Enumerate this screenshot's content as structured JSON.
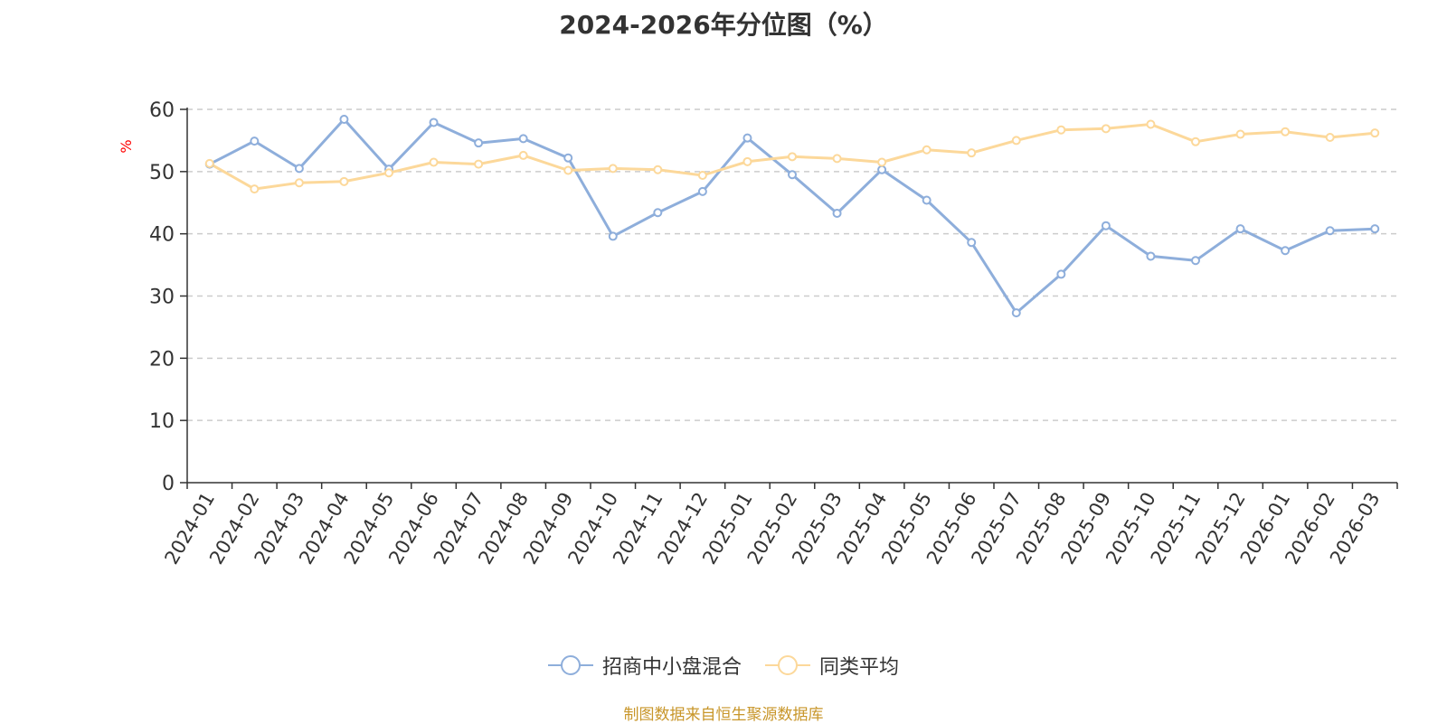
{
  "chart_data": {
    "type": "line",
    "title": "2024-2026年分位图（%）",
    "ylabel": "%",
    "ylim": [
      0,
      60
    ],
    "yticks": [
      0,
      10,
      20,
      30,
      40,
      50,
      60
    ],
    "grid": true,
    "legend_position": "bottom",
    "categories": [
      "2024-01",
      "2024-02",
      "2024-03",
      "2024-04",
      "2024-05",
      "2024-06",
      "2024-07",
      "2024-08",
      "2024-09",
      "2024-10",
      "2024-11",
      "2024-12",
      "2025-01",
      "2025-02",
      "2025-03",
      "2025-04",
      "2025-05",
      "2025-06",
      "2025-07",
      "2025-08",
      "2025-09",
      "2025-10",
      "2025-11",
      "2025-12",
      "2026-01",
      "2026-02",
      "2026-03"
    ],
    "series": [
      {
        "name": "招商中小盘混合",
        "color": "#8eaedb",
        "values": [
          51.2,
          54.9,
          50.5,
          58.4,
          50.4,
          57.9,
          54.6,
          55.3,
          52.2,
          39.6,
          43.4,
          46.8,
          55.4,
          49.5,
          43.3,
          50.3,
          45.4,
          38.6,
          27.3,
          33.5,
          41.3,
          36.4,
          35.7,
          40.8,
          37.3,
          40.5,
          40.8
        ]
      },
      {
        "name": "同类平均",
        "color": "#fcd89a",
        "values": [
          51.3,
          47.2,
          48.2,
          48.4,
          49.8,
          51.5,
          51.2,
          52.6,
          50.2,
          50.5,
          50.3,
          49.4,
          51.6,
          52.4,
          52.1,
          51.5,
          53.5,
          53.0,
          55.0,
          56.7,
          56.9,
          57.6,
          54.8,
          56.0,
          56.4,
          55.5,
          56.2
        ]
      }
    ]
  },
  "source_text": "制图数据来自恒生聚源数据库"
}
